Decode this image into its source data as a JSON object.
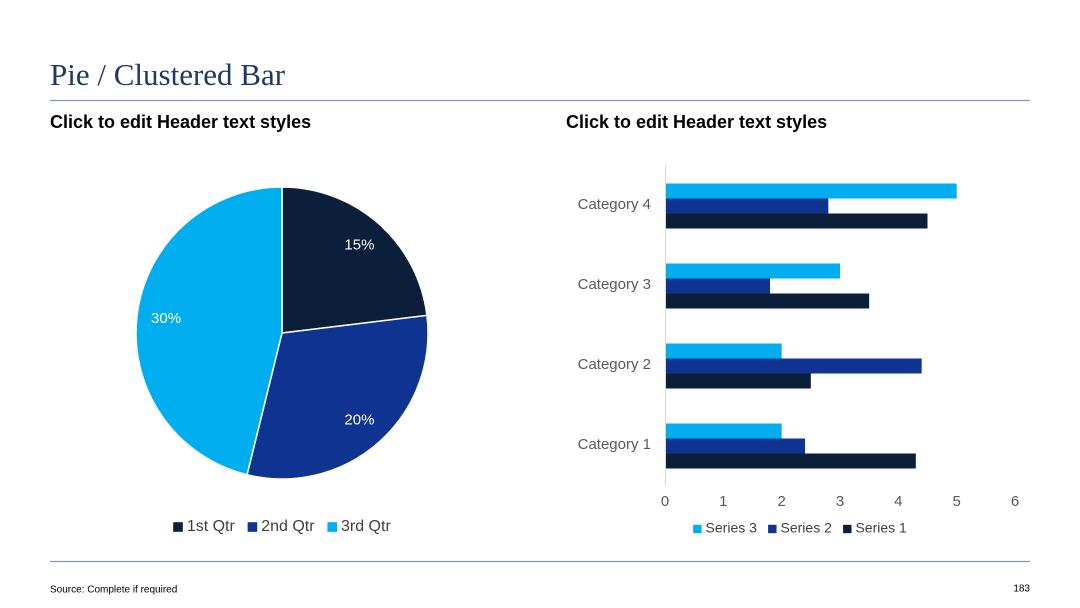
{
  "page": {
    "title": "Pie / Clustered Bar",
    "source": "Source: Complete if required",
    "page_number": "183"
  },
  "chart_data": [
    {
      "type": "pie",
      "header": "Click to edit Header text styles",
      "categories": [
        "1st Qtr",
        "2nd Qtr",
        "3rd Qtr"
      ],
      "values": [
        15,
        20,
        30
      ],
      "value_labels": [
        "15%",
        "20%",
        "30%"
      ],
      "colors": [
        "#0b1f3a",
        "#0f3391",
        "#00aeef"
      ],
      "legend": "bottom"
    },
    {
      "type": "hbar",
      "header": "Click to edit Header text styles",
      "categories": [
        "Category 1",
        "Category 2",
        "Category 3",
        "Category 4"
      ],
      "series": [
        {
          "name": "Series 1",
          "color": "#0b1f3a",
          "values": [
            4.3,
            2.5,
            3.5,
            4.5
          ]
        },
        {
          "name": "Series 2",
          "color": "#0f3391",
          "values": [
            2.4,
            4.4,
            1.8,
            2.8
          ]
        },
        {
          "name": "Series 3",
          "color": "#00aeef",
          "values": [
            2,
            2,
            3,
            5
          ]
        }
      ],
      "xlim": [
        0,
        6
      ],
      "xticks": [
        0,
        1,
        2,
        3,
        4,
        5,
        6
      ],
      "legend": "bottom"
    }
  ]
}
